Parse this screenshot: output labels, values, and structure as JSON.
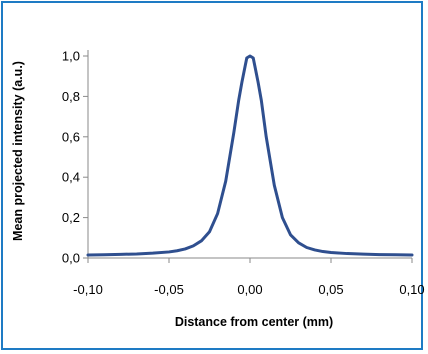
{
  "chart_data": {
    "type": "line",
    "title": "",
    "xlabel": "Distance from center (mm)",
    "ylabel": "Mean projected intensity (a.u.)",
    "xlim": [
      -0.1,
      0.1
    ],
    "ylim": [
      0.0,
      1.0
    ],
    "x_ticks": [
      "-0,10",
      "-0,05",
      "0,00",
      "0,05",
      "0,10"
    ],
    "y_ticks": [
      "0,0",
      "0,2",
      "0,4",
      "0,6",
      "0,8",
      "1,0"
    ],
    "grid": false,
    "legend": "none",
    "series": [
      {
        "color": "#2f4f8f",
        "x": [
          -0.1,
          -0.09,
          -0.08,
          -0.07,
          -0.06,
          -0.05,
          -0.045,
          -0.04,
          -0.035,
          -0.03,
          -0.025,
          -0.02,
          -0.015,
          -0.01,
          -0.007,
          -0.005,
          -0.003,
          -0.002,
          0.0,
          0.002,
          0.003,
          0.005,
          0.007,
          0.01,
          0.015,
          0.02,
          0.025,
          0.03,
          0.035,
          0.04,
          0.045,
          0.05,
          0.06,
          0.07,
          0.08,
          0.09,
          0.1
        ],
        "y": [
          0.015,
          0.016,
          0.018,
          0.02,
          0.024,
          0.03,
          0.036,
          0.045,
          0.06,
          0.085,
          0.13,
          0.22,
          0.38,
          0.62,
          0.78,
          0.87,
          0.95,
          0.99,
          1.0,
          0.99,
          0.95,
          0.87,
          0.78,
          0.6,
          0.36,
          0.2,
          0.115,
          0.075,
          0.052,
          0.04,
          0.032,
          0.027,
          0.022,
          0.019,
          0.017,
          0.016,
          0.015
        ]
      }
    ]
  }
}
